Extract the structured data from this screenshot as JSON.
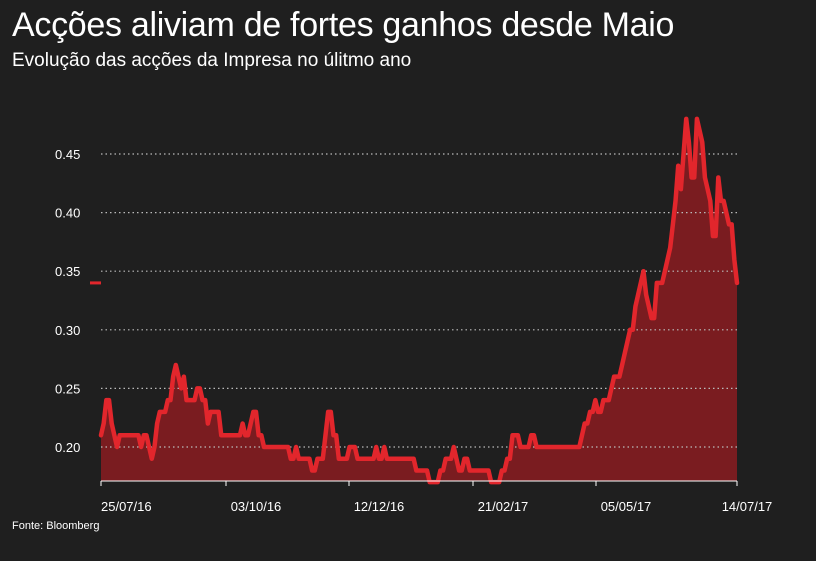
{
  "header": {
    "title": "Acções aliviam de fortes ganhos desde Maio",
    "subtitle": "Evolução das acções da Impresa no úlitmo ano"
  },
  "footer": {
    "source": "Fonte: Bloomberg"
  },
  "colors": {
    "background": "#1f1f1f",
    "line": "#e2262c",
    "area": "#7a1c20",
    "grid": "#bbbbbb",
    "text": "#ffffff"
  },
  "chart_data": {
    "type": "area",
    "title": "Acções aliviam de fortes ganhos desde Maio",
    "subtitle": "Evolução das acções da Impresa no úlitmo ano",
    "xlabel": "",
    "ylabel": "",
    "ylim": [
      0.17,
      0.48
    ],
    "yticks": [
      0.2,
      0.25,
      0.3,
      0.35,
      0.4,
      0.45
    ],
    "ytick_labels": [
      "0.20",
      "0.25",
      "0.30",
      "0.35",
      "0.40",
      "0.45"
    ],
    "xticks": [
      "25/07/16",
      "03/10/16",
      "12/12/16",
      "21/02/17",
      "05/05/17",
      "14/07/17"
    ],
    "grid": true,
    "legend": "none",
    "last_value_marker": 0.34,
    "series": [
      {
        "values": [
          0.21,
          0.22,
          0.24,
          0.24,
          0.22,
          0.21,
          0.2,
          0.21,
          0.21,
          0.21,
          0.21,
          0.21,
          0.21,
          0.21,
          0.21,
          0.2,
          0.21,
          0.21,
          0.2,
          0.19,
          0.2,
          0.22,
          0.23,
          0.23,
          0.23,
          0.24,
          0.24,
          0.26,
          0.27,
          0.26,
          0.25,
          0.26,
          0.24,
          0.24,
          0.24,
          0.24,
          0.25,
          0.25,
          0.24,
          0.24,
          0.22,
          0.23,
          0.23,
          0.23,
          0.23,
          0.21,
          0.21,
          0.21,
          0.21,
          0.21,
          0.21,
          0.21,
          0.21,
          0.22,
          0.21,
          0.21,
          0.22,
          0.23,
          0.23,
          0.21,
          0.21,
          0.2,
          0.2,
          0.2,
          0.2,
          0.2,
          0.2,
          0.2,
          0.2,
          0.2,
          0.2,
          0.19,
          0.19,
          0.2,
          0.19,
          0.19,
          0.19,
          0.19,
          0.19,
          0.18,
          0.18,
          0.19,
          0.19,
          0.19,
          0.21,
          0.23,
          0.23,
          0.21,
          0.21,
          0.19,
          0.19,
          0.19,
          0.19,
          0.2,
          0.2,
          0.2,
          0.19,
          0.19,
          0.19,
          0.19,
          0.19,
          0.19,
          0.19,
          0.2,
          0.19,
          0.19,
          0.2,
          0.19,
          0.19,
          0.19,
          0.19,
          0.19,
          0.19,
          0.19,
          0.19,
          0.19,
          0.19,
          0.19,
          0.18,
          0.18,
          0.18,
          0.18,
          0.18,
          0.17,
          0.17,
          0.17,
          0.17,
          0.18,
          0.18,
          0.19,
          0.19,
          0.19,
          0.2,
          0.19,
          0.18,
          0.18,
          0.19,
          0.19,
          0.18,
          0.18,
          0.18,
          0.18,
          0.18,
          0.18,
          0.18,
          0.18,
          0.17,
          0.17,
          0.17,
          0.17,
          0.18,
          0.18,
          0.19,
          0.19,
          0.21,
          0.21,
          0.21,
          0.2,
          0.2,
          0.2,
          0.2,
          0.21,
          0.21,
          0.2,
          0.2,
          0.2,
          0.2,
          0.2,
          0.2,
          0.2,
          0.2,
          0.2,
          0.2,
          0.2,
          0.2,
          0.2,
          0.2,
          0.2,
          0.2,
          0.2,
          0.21,
          0.22,
          0.22,
          0.23,
          0.23,
          0.24,
          0.23,
          0.23,
          0.24,
          0.24,
          0.24,
          0.25,
          0.26,
          0.26,
          0.26,
          0.27,
          0.28,
          0.29,
          0.3,
          0.3,
          0.32,
          0.33,
          0.34,
          0.35,
          0.33,
          0.32,
          0.31,
          0.31,
          0.34,
          0.34,
          0.34,
          0.35,
          0.36,
          0.37,
          0.39,
          0.41,
          0.44,
          0.42,
          0.45,
          0.48,
          0.46,
          0.43,
          0.43,
          0.48,
          0.47,
          0.46,
          0.43,
          0.42,
          0.41,
          0.38,
          0.38,
          0.43,
          0.41,
          0.41,
          0.4,
          0.39,
          0.39,
          0.36,
          0.34
        ]
      }
    ]
  }
}
